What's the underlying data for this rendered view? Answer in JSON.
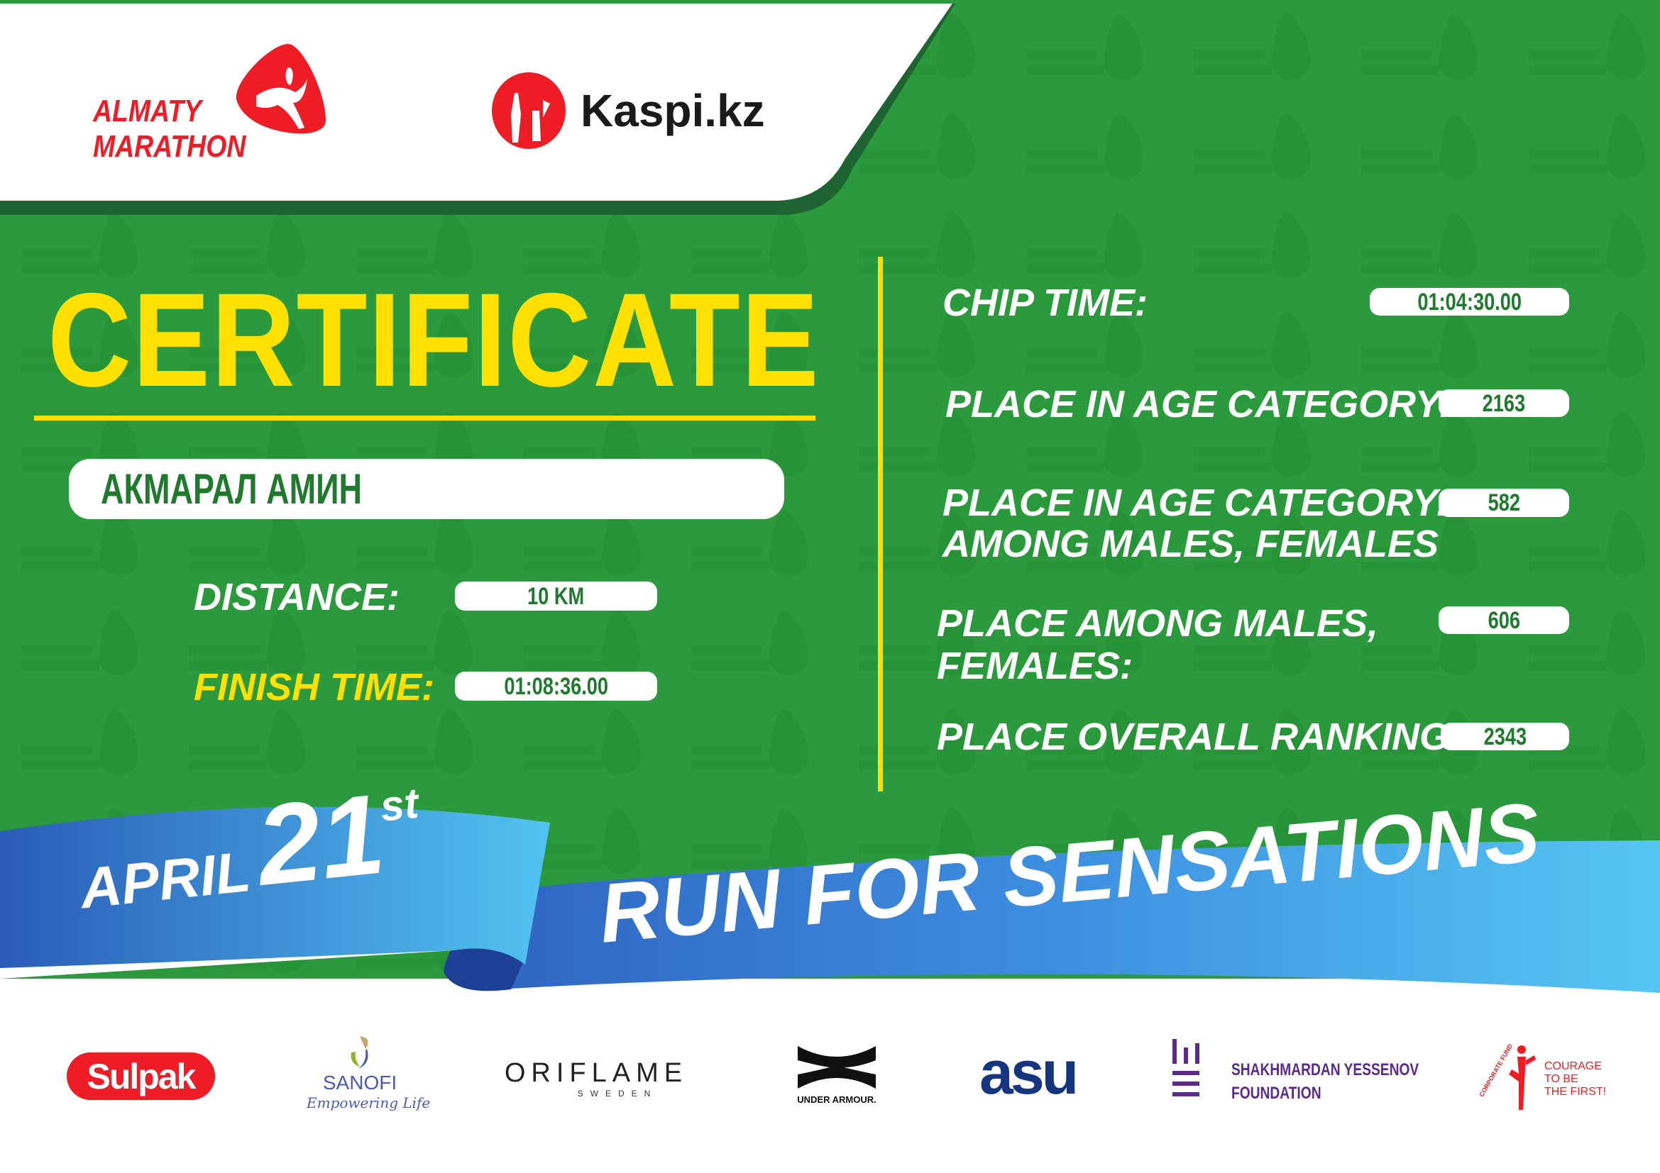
{
  "header": {
    "logo_almaty": {
      "line1": "ALMATY",
      "line2": "MARATHON"
    },
    "logo_kaspi": "Kaspi.kz"
  },
  "certificate": {
    "title": "CERTIFICATE",
    "participant_name": "АКМАРАЛ АМИН",
    "distance_label": "DISTANCE:",
    "distance_value": "10 KM",
    "finish_label": "FINISH TIME:",
    "finish_value": "01:08:36.00",
    "chip_label": "CHIP TIME:",
    "chip_value": "01:04:30.00",
    "age_cat_label": "PLACE IN AGE CATEGORY:",
    "age_cat_value": "2163",
    "age_cat_gender_label_1": "PLACE IN AGE CATEGORY:",
    "age_cat_gender_label_2": "AMONG MALES, FEMALES",
    "age_cat_gender_value": "582",
    "gender_label_1": "PLACE AMONG MALES,",
    "gender_label_2": "FEMALES:",
    "gender_value": "606",
    "overall_label": "PLACE OVERALL RANKING:",
    "overall_value": "2343"
  },
  "ribbon": {
    "month": "APRIL",
    "day": "21",
    "suffix": "st",
    "slogan": "RUN FOR SENSATIONS"
  },
  "sponsors": {
    "sulpak": "Sulpak",
    "sanofi": "SANOFI",
    "sanofi_tag": "Empowering Life",
    "oriflame": "ORIFLAME",
    "oriflame_sub": "SWEDEN",
    "under_armour": "UNDER ARMOUR.",
    "asu": "asu",
    "yessenov_1": "SHAKHMARDAN YESSENOV",
    "yessenov_2": "FOUNDATION",
    "courage_fund": "CORPORATE FUND",
    "courage_1": "COURAGE",
    "courage_2": "TO BE",
    "courage_3": "THE FIRST!"
  },
  "colors": {
    "green": "#2b9a3c",
    "dark_green": "#1e6433",
    "yellow": "#ffe000",
    "red": "#ee1c25",
    "ribbon_dark": "#2a5cb8",
    "ribbon_light": "#52c3f0"
  }
}
